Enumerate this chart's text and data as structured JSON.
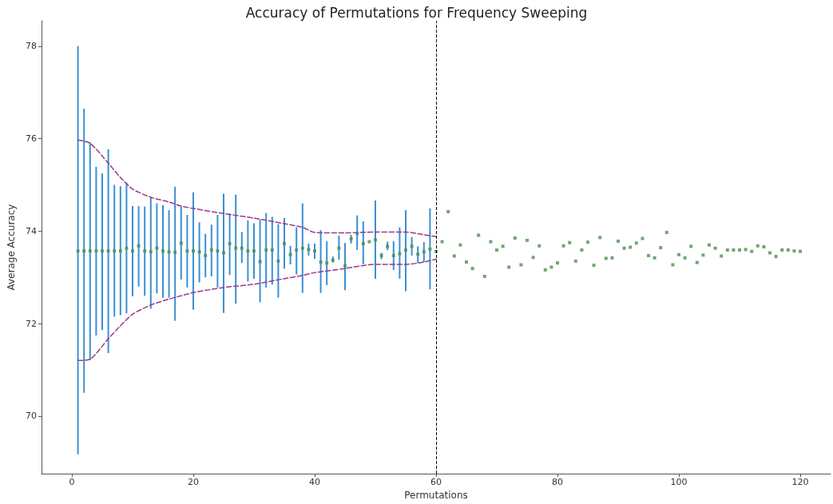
{
  "chart_data": {
    "type": "scatter",
    "title": "Accuracy of Permutations for Frequency Sweeping",
    "xlabel": "Permutations",
    "ylabel": "Average Accuracy",
    "xlim": [
      -5,
      125
    ],
    "ylim": [
      68.75,
      78.55
    ],
    "xticks": [
      0,
      20,
      40,
      60,
      80,
      100,
      120
    ],
    "yticks": [
      70,
      72,
      74,
      76,
      78
    ],
    "grid": false,
    "ref_lines": [
      {
        "axis": "x",
        "value": 60,
        "color": "#000000",
        "line_style": "dashed"
      }
    ],
    "series": [
      {
        "type": "bar",
        "color": "#3a8fd4",
        "x": [
          1,
          2,
          3,
          4,
          5,
          6,
          7,
          8,
          9,
          10,
          11,
          12,
          13,
          14,
          15,
          16,
          17,
          18,
          19,
          20,
          21,
          22,
          23,
          24,
          25,
          26,
          27,
          28,
          29,
          30,
          31,
          32,
          33,
          34,
          35,
          36,
          37,
          38,
          39,
          40,
          41,
          42,
          43,
          44,
          45,
          46,
          47,
          48,
          49,
          50,
          51,
          52,
          53,
          54,
          55,
          56,
          57,
          58,
          59
        ],
        "base": [
          69.17,
          70.5,
          71.21,
          71.74,
          71.86,
          71.36,
          72.15,
          72.18,
          72.22,
          72.59,
          72.8,
          72.6,
          72.32,
          72.65,
          72.56,
          72.56,
          72.06,
          72.95,
          72.78,
          72.3,
          72.89,
          73.0,
          73.02,
          72.78,
          72.23,
          73.05,
          72.43,
          73.31,
          72.91,
          72.97,
          72.46,
          72.78,
          72.84,
          72.56,
          73.19,
          73.28,
          73.06,
          72.66,
          73.47,
          73.4,
          72.66,
          72.83,
          73.32,
          73.38,
          72.72,
          73.73,
          73.59,
          73.28,
          null,
          72.97,
          73.39,
          73.59,
          73.16,
          72.97,
          72.7,
          73.47,
          73.31,
          73.33,
          72.74
        ],
        "values": [
          8.83,
          6.15,
          4.71,
          3.65,
          3.39,
          4.41,
          2.85,
          2.79,
          2.83,
          1.95,
          1.74,
          1.93,
          2.42,
          1.95,
          2.0,
          1.89,
          2.9,
          1.58,
          1.57,
          2.54,
          1.3,
          0.94,
          1.12,
          1.57,
          2.58,
          1.33,
          2.36,
          0.67,
          1.32,
          1.2,
          1.79,
          1.61,
          1.47,
          1.59,
          1.09,
          0.4,
          1.02,
          1.94,
          0.26,
          0.33,
          1.36,
          0.95,
          0.13,
          0.52,
          1.02,
          0.19,
          0.75,
          0.93,
          null,
          1.69,
          0.14,
          0.18,
          0.62,
          1.11,
          1.75,
          0.4,
          0.36,
          0.43,
          1.75
        ]
      },
      {
        "color": "#4e8f4e",
        "marker": "square",
        "x": [
          1,
          2,
          3,
          4,
          5,
          6,
          7,
          8,
          9,
          10,
          11,
          12,
          13,
          14,
          15,
          16,
          17,
          18,
          19,
          20,
          21,
          22,
          23,
          24,
          25,
          26,
          27,
          28,
          29,
          30,
          31,
          32,
          33,
          34,
          35,
          36,
          37,
          38,
          39,
          40,
          41,
          42,
          43,
          44,
          45,
          46,
          47,
          48,
          49,
          50,
          51,
          52,
          53,
          54,
          55,
          56,
          57,
          58,
          59,
          60,
          61,
          62,
          63,
          64,
          65,
          66,
          67,
          68,
          69,
          70,
          71,
          72,
          73,
          74,
          75,
          76,
          77,
          78,
          79,
          80,
          81,
          82,
          83,
          84,
          85,
          86,
          87,
          88,
          89,
          90,
          91,
          92,
          93,
          94,
          95,
          96,
          97,
          98,
          99,
          100,
          101,
          102,
          103,
          104,
          105,
          106,
          107,
          108,
          109,
          110,
          111,
          112,
          113,
          114,
          115,
          116,
          117,
          118,
          119,
          120
        ],
        "values": [
          73.57,
          73.57,
          73.57,
          73.57,
          73.57,
          73.57,
          73.57,
          73.57,
          73.63,
          73.57,
          73.68,
          73.57,
          73.55,
          73.63,
          73.57,
          73.55,
          73.54,
          73.74,
          73.57,
          73.57,
          73.55,
          73.47,
          73.59,
          73.57,
          73.53,
          73.73,
          73.63,
          73.63,
          73.57,
          73.57,
          73.34,
          73.59,
          73.59,
          73.35,
          73.73,
          73.49,
          73.59,
          73.63,
          73.6,
          73.57,
          73.33,
          73.31,
          73.37,
          73.63,
          73.25,
          73.83,
          73.95,
          73.73,
          73.77,
          73.81,
          73.47,
          73.67,
          73.47,
          73.51,
          73.59,
          73.67,
          73.5,
          73.55,
          73.61,
          73.56,
          73.77,
          74.42,
          73.46,
          73.7,
          73.33,
          73.19,
          73.91,
          73.02,
          73.77,
          73.59,
          73.67,
          73.22,
          73.85,
          73.27,
          73.8,
          73.43,
          73.68,
          73.16,
          73.22,
          73.31,
          73.68,
          73.75,
          73.35,
          73.59,
          73.76,
          73.26,
          73.86,
          73.41,
          73.42,
          73.78,
          73.63,
          73.65,
          73.74,
          73.84,
          73.47,
          73.42,
          73.64,
          73.97,
          73.27,
          73.49,
          73.42,
          73.67,
          73.32,
          73.48,
          73.7,
          73.63,
          73.46,
          73.59,
          73.59,
          73.59,
          73.6,
          73.56,
          73.68,
          73.66,
          73.53,
          73.45,
          73.59,
          73.59,
          73.57,
          73.56
        ]
      },
      {
        "type": "line",
        "color": "#9c3a8c",
        "marker": "none",
        "line_style": "dashed",
        "x": [
          1,
          3,
          6,
          8,
          10,
          13,
          16,
          18,
          20,
          25,
          30,
          35,
          38,
          40,
          45,
          50,
          55,
          58,
          60
        ],
        "values": [
          75.97,
          75.9,
          75.47,
          75.16,
          74.91,
          74.73,
          74.63,
          74.54,
          74.49,
          74.38,
          74.28,
          74.16,
          74.08,
          73.97,
          73.96,
          73.98,
          73.98,
          73.92,
          73.88
        ]
      },
      {
        "type": "line",
        "color": "#9c3a8c",
        "marker": "none",
        "line_style": "dashed",
        "x": [
          1,
          3,
          6,
          8,
          10,
          13,
          16,
          18,
          20,
          25,
          30,
          35,
          38,
          40,
          45,
          50,
          55,
          58,
          60
        ],
        "values": [
          71.2,
          71.23,
          71.67,
          71.95,
          72.2,
          72.4,
          72.53,
          72.6,
          72.67,
          72.78,
          72.85,
          72.97,
          73.04,
          73.1,
          73.19,
          73.28,
          73.28,
          73.33,
          73.39
        ]
      }
    ]
  }
}
